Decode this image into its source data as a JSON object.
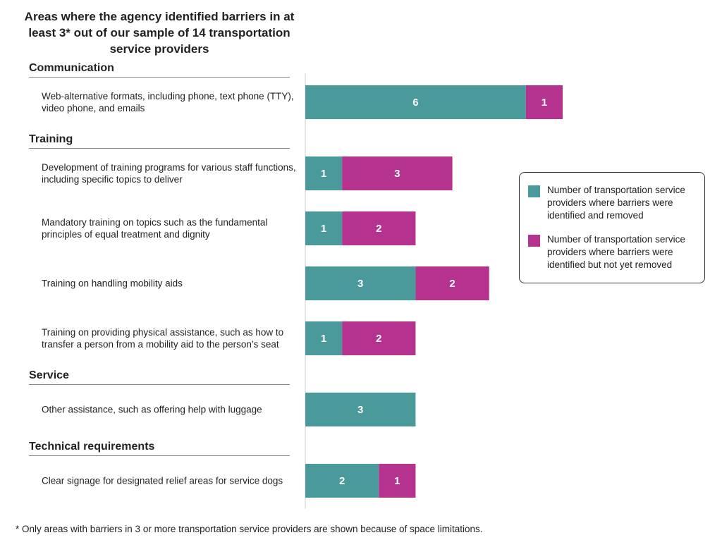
{
  "chart_data": {
    "type": "bar",
    "orientation": "horizontal",
    "stacked": true,
    "title": "Areas where the agency identified barriers in at least 3* out of our sample of 14 transportation service providers",
    "footnote": "* Only areas with barriers in 3 or more transportation service providers are shown because of space limitations.",
    "groups": [
      {
        "label": "Communication",
        "categories": [
          "Web-alternative formats, including phone, text phone (TTY), video phone, and emails"
        ]
      },
      {
        "label": "Training",
        "categories": [
          "Development of training programs for various staff functions, including specific topics to deliver",
          "Mandatory training on topics such as the fundamental principles of equal treatment and dignity",
          "Training on handling mobility aids",
          "Training on providing physical assistance, such as how to transfer a person from a mobility aid to the person’s seat"
        ]
      },
      {
        "label": "Service",
        "categories": [
          "Other assistance, such as offering help with luggage"
        ]
      },
      {
        "label": "Technical requirements",
        "categories": [
          "Clear signage for designated relief areas for service dogs"
        ]
      }
    ],
    "series": [
      {
        "name": "Number of transportation service providers where barriers were identified and removed",
        "color": "#4a9a9b",
        "values": [
          6,
          1,
          1,
          3,
          1,
          3,
          2
        ]
      },
      {
        "name": "Number of transportation service providers where barriers were identified but not yet removed",
        "color": "#b5338f",
        "values": [
          1,
          3,
          2,
          2,
          2,
          null,
          1
        ]
      }
    ],
    "xlim": [
      0,
      7
    ]
  }
}
